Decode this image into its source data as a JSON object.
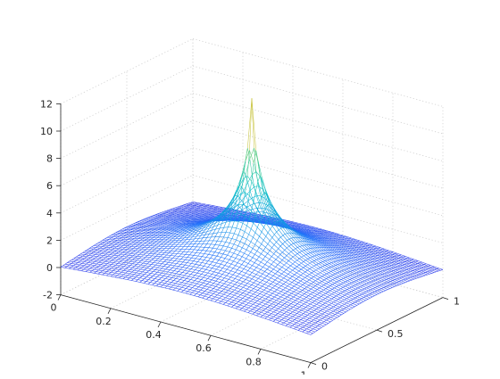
{
  "chart_data": {
    "type": "surface",
    "title": "",
    "x_ticks": [
      "0",
      "0.2",
      "0.4",
      "0.6",
      "0.8",
      "1"
    ],
    "y_ticks": [
      "0",
      "0.5",
      "1"
    ],
    "z_ticks": [
      "-2",
      "0",
      "2",
      "4",
      "6",
      "8",
      "10",
      "12"
    ],
    "xlim": [
      0,
      1
    ],
    "ylim": [
      0,
      1
    ],
    "zlim": [
      -2,
      12
    ],
    "grid": true,
    "colormap": "parula",
    "mesh_color": "#3a46f5",
    "peak_color": "#f3e623",
    "surface_peak": {
      "x": 0.5,
      "y": 0.5,
      "z": 13.3
    },
    "surface_edge_value": 0.0
  }
}
